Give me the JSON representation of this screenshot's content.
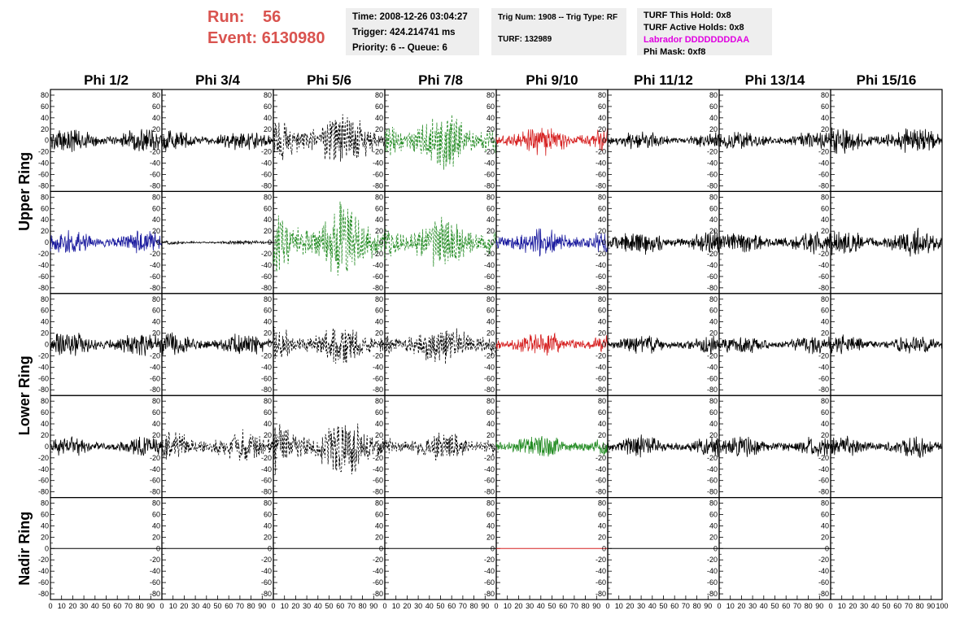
{
  "header": {
    "run_label": "Run:",
    "run_value": "56",
    "event_label": "Event:",
    "event_value": "6130980",
    "time": "Time: 2008-12-26 03:04:27",
    "trigger": "Trigger: 424.214741 ms",
    "priority": "Priority: 6 -- Queue: 6",
    "trig_num": "Trig Num: 1908 -- Trig Type: RF",
    "turf": "TURF: 132989",
    "turf_hold": "TURF This Hold: 0x8",
    "turf_active": "TURF Active Holds: 0x8",
    "labrador": "Labrador DDDDDDDDAA",
    "phi_mask": "Phi Mask: 0xf8"
  },
  "colors": {
    "run_text": "#d9534f",
    "labrador_text": "#e000e0",
    "trace_black": "#000000",
    "trace_blue": "#1a1a9e",
    "trace_green": "#228b22",
    "trace_red": "#d62020"
  },
  "chart_data": {
    "type": "line",
    "columns": [
      "Phi 1/2",
      "Phi 3/4",
      "Phi 5/6",
      "Phi 7/8",
      "Phi 9/10",
      "Phi 11/12",
      "Phi 13/14",
      "Phi 15/16"
    ],
    "rows": [
      "Upper Ring",
      "Upper Ring",
      "Lower Ring",
      "Lower Ring",
      "Nadir Ring"
    ],
    "row_groups": [
      {
        "label": "Upper Ring",
        "rows": [
          0,
          1
        ]
      },
      {
        "label": "Lower Ring",
        "rows": [
          2,
          3
        ]
      },
      {
        "label": "Nadir Ring",
        "rows": [
          4
        ]
      }
    ],
    "xlim": [
      0,
      100
    ],
    "ylim": [
      -90,
      90
    ],
    "y_ticks": [
      80,
      60,
      40,
      20,
      0,
      -20,
      -40,
      -60,
      -80
    ],
    "x_tick_labels": [
      "0",
      "10",
      "20",
      "30",
      "40",
      "50",
      "60",
      "70",
      "80",
      "90",
      "100"
    ],
    "panels": [
      [
        {
          "color": "black",
          "style": "solid",
          "amp": 18
        },
        {
          "color": "black",
          "style": "solid",
          "amp": 16
        },
        {
          "color": "black",
          "style": "dashed",
          "amp": 40
        },
        {
          "color": "green",
          "style": "dashed",
          "amp": 45
        },
        {
          "color": "red",
          "style": "solid",
          "amp": 22
        },
        {
          "color": "black",
          "style": "solid",
          "amp": 13
        },
        {
          "color": "black",
          "style": "solid",
          "amp": 14
        },
        {
          "color": "black",
          "style": "solid",
          "amp": 20
        }
      ],
      [
        {
          "color": "blue",
          "style": "solid",
          "amp": 18
        },
        {
          "color": "black",
          "style": "solid",
          "amp": 3
        },
        {
          "color": "green",
          "style": "dashed",
          "amp": 55
        },
        {
          "color": "green",
          "style": "dashed",
          "amp": 38
        },
        {
          "color": "blue",
          "style": "solid",
          "amp": 22
        },
        {
          "color": "black",
          "style": "solid",
          "amp": 18
        },
        {
          "color": "black",
          "style": "solid",
          "amp": 17
        },
        {
          "color": "black",
          "style": "solid",
          "amp": 20
        }
      ],
      [
        {
          "color": "black",
          "style": "solid",
          "amp": 18
        },
        {
          "color": "black",
          "style": "solid",
          "amp": 18
        },
        {
          "color": "black",
          "style": "dashed",
          "amp": 30
        },
        {
          "color": "black",
          "style": "dashed",
          "amp": 32
        },
        {
          "color": "red",
          "style": "solid",
          "amp": 18
        },
        {
          "color": "black",
          "style": "solid",
          "amp": 14
        },
        {
          "color": "black",
          "style": "solid",
          "amp": 14
        },
        {
          "color": "black",
          "style": "solid",
          "amp": 14
        }
      ],
      [
        {
          "color": "black",
          "style": "solid",
          "amp": 14
        },
        {
          "color": "black",
          "style": "dashed",
          "amp": 24
        },
        {
          "color": "black",
          "style": "dashed",
          "amp": 42
        },
        {
          "color": "black",
          "style": "dashed",
          "amp": 22
        },
        {
          "color": "green",
          "style": "solid",
          "amp": 18
        },
        {
          "color": "black",
          "style": "solid",
          "amp": 16
        },
        {
          "color": "black",
          "style": "solid",
          "amp": 15
        },
        {
          "color": "black",
          "style": "solid",
          "amp": 16
        }
      ],
      [
        {
          "color": "black",
          "style": "solid",
          "amp": 0
        },
        {
          "color": "black",
          "style": "solid",
          "amp": 0
        },
        {
          "color": "black",
          "style": "solid",
          "amp": 0
        },
        {
          "color": "black",
          "style": "solid",
          "amp": 0
        },
        {
          "color": "red",
          "style": "solid",
          "amp": 0
        },
        {
          "color": "black",
          "style": "solid",
          "amp": 0
        },
        {
          "color": "black",
          "style": "solid",
          "amp": 0
        },
        {
          "color": "none",
          "style": "solid",
          "amp": 0
        }
      ]
    ]
  }
}
